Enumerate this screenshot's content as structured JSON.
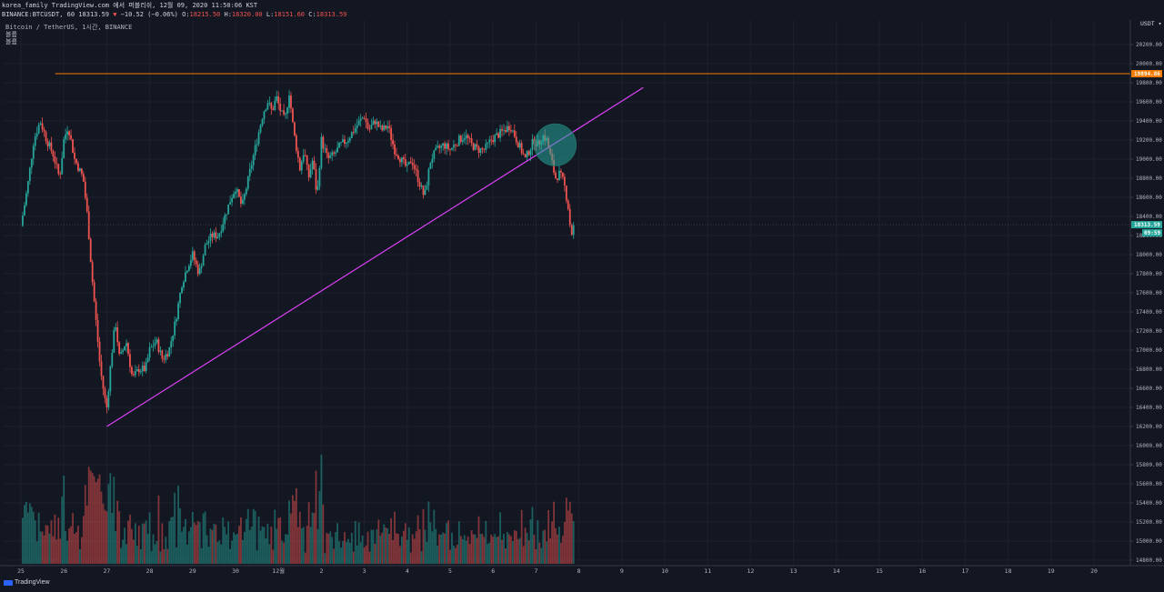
{
  "header": {
    "line1": "korea_family TradingView.com 에서 퍼블리쉬, 12월 09, 2020 11:50:06 KST",
    "symbol": "BINANCE:BTCUSDT, 60",
    "last": "18313.59",
    "arrow": "▼",
    "change": "−10.52 (−0.06%)",
    "o_label": "O:",
    "o_value": "18215.50",
    "h_label": "H:",
    "h_value": "18320.00",
    "l_label": "L:",
    "l_value": "18151.60",
    "c_label": "C:",
    "c_value": "18313.59"
  },
  "pane": {
    "title": "Bitcoin / TetherUS, 1시간, BINANCE",
    "line2": "볼륨",
    "line3": "볼륨"
  },
  "currency_label": "USDT ▾",
  "logo_text": "TradingView",
  "colors": {
    "background": "#131722",
    "up": "#26a69a",
    "down": "#ef5350",
    "trendline": "#e040fb",
    "resistance": "#f57c00",
    "highlight": "#26a69a"
  },
  "chart_data": {
    "type": "candlestick",
    "title": "Bitcoin / TetherUS, 1시간, BINANCE",
    "ylim": [
      14700,
      20400
    ],
    "y_ticks": [
      "20200.00",
      "20000.00",
      "19800.00",
      "19600.00",
      "19400.00",
      "19200.00",
      "19000.00",
      "18800.00",
      "18600.00",
      "18400.00",
      "18200.00",
      "18000.00",
      "17800.00",
      "17600.00",
      "17400.00",
      "17200.00",
      "17000.00",
      "16800.00",
      "16600.00",
      "16400.00",
      "16200.00",
      "16000.00",
      "15800.00",
      "15600.00",
      "15400.00",
      "15200.00",
      "15000.00",
      "14800.00"
    ],
    "x_ticks": [
      "25",
      "26",
      "27",
      "28",
      "29",
      "30",
      "12월",
      "2",
      "3",
      "4",
      "5",
      "6",
      "7",
      "8",
      "9",
      "10",
      "11",
      "12",
      "13",
      "14",
      "15",
      "16",
      "17",
      "18",
      "19",
      "20"
    ],
    "price_path": [
      [
        0,
        18300
      ],
      [
        0.15,
        18700
      ],
      [
        0.3,
        19200
      ],
      [
        0.45,
        19400
      ],
      [
        0.6,
        19200
      ],
      [
        0.75,
        19050
      ],
      [
        0.9,
        18800
      ],
      [
        1.0,
        19200
      ],
      [
        1.1,
        19350
      ],
      [
        1.25,
        19000
      ],
      [
        1.45,
        18800
      ],
      [
        1.55,
        18400
      ],
      [
        1.65,
        17800
      ],
      [
        1.75,
        17300
      ],
      [
        1.85,
        16800
      ],
      [
        1.95,
        16500
      ],
      [
        2.0,
        16400
      ],
      [
        2.1,
        16900
      ],
      [
        2.2,
        17300
      ],
      [
        2.3,
        16900
      ],
      [
        2.45,
        17100
      ],
      [
        2.6,
        16700
      ],
      [
        2.75,
        16800
      ],
      [
        2.9,
        16800
      ],
      [
        3.0,
        17000
      ],
      [
        3.15,
        17100
      ],
      [
        3.3,
        16900
      ],
      [
        3.45,
        17000
      ],
      [
        3.6,
        17300
      ],
      [
        3.75,
        17700
      ],
      [
        3.9,
        17900
      ],
      [
        4.0,
        18000
      ],
      [
        4.15,
        17800
      ],
      [
        4.3,
        18100
      ],
      [
        4.45,
        18200
      ],
      [
        4.6,
        18200
      ],
      [
        4.75,
        18400
      ],
      [
        4.9,
        18600
      ],
      [
        5.0,
        18700
      ],
      [
        5.15,
        18500
      ],
      [
        5.3,
        18800
      ],
      [
        5.45,
        19100
      ],
      [
        5.55,
        19300
      ],
      [
        5.65,
        19500
      ],
      [
        5.75,
        19600
      ],
      [
        5.85,
        19500
      ],
      [
        5.95,
        19650
      ],
      [
        6.05,
        19500
      ],
      [
        6.15,
        19400
      ],
      [
        6.25,
        19700
      ],
      [
        6.35,
        19300
      ],
      [
        6.5,
        18900
      ],
      [
        6.6,
        19100
      ],
      [
        6.7,
        18800
      ],
      [
        6.8,
        19000
      ],
      [
        6.9,
        18600
      ],
      [
        7.0,
        19200
      ],
      [
        7.15,
        19000
      ],
      [
        7.3,
        19050
      ],
      [
        7.45,
        19150
      ],
      [
        7.6,
        19200
      ],
      [
        7.75,
        19300
      ],
      [
        7.9,
        19400
      ],
      [
        8.0,
        19450
      ],
      [
        8.1,
        19300
      ],
      [
        8.25,
        19400
      ],
      [
        8.4,
        19300
      ],
      [
        8.55,
        19350
      ],
      [
        8.7,
        19100
      ],
      [
        8.85,
        19000
      ],
      [
        9.0,
        18900
      ],
      [
        9.1,
        19000
      ],
      [
        9.25,
        18800
      ],
      [
        9.4,
        18600
      ],
      [
        9.55,
        19000
      ],
      [
        9.7,
        19100
      ],
      [
        9.85,
        19150
      ],
      [
        10.0,
        19100
      ],
      [
        10.2,
        19200
      ],
      [
        10.35,
        19250
      ],
      [
        10.5,
        19150
      ],
      [
        10.65,
        19100
      ],
      [
        10.8,
        19100
      ],
      [
        10.95,
        19200
      ],
      [
        11.1,
        19250
      ],
      [
        11.25,
        19300
      ],
      [
        11.4,
        19350
      ],
      [
        11.5,
        19250
      ],
      [
        11.6,
        19150
      ],
      [
        11.75,
        19000
      ],
      [
        11.85,
        19100
      ],
      [
        11.95,
        19200
      ],
      [
        12.05,
        19150
      ],
      [
        12.15,
        19250
      ],
      [
        12.25,
        19200
      ],
      [
        12.3,
        19100
      ],
      [
        12.38,
        18950
      ],
      [
        12.45,
        18800
      ],
      [
        12.55,
        18850
      ],
      [
        12.65,
        18750
      ],
      [
        12.75,
        18500
      ],
      [
        12.82,
        18200
      ],
      [
        12.88,
        18300
      ]
    ],
    "resistance_level": 19894.86,
    "resistance_label": "19894.86",
    "last_price_label": "18313.59",
    "countdown_label": "09:59",
    "trendline": [
      [
        2.0,
        16200
      ],
      [
        14.5,
        19750
      ]
    ]
  }
}
